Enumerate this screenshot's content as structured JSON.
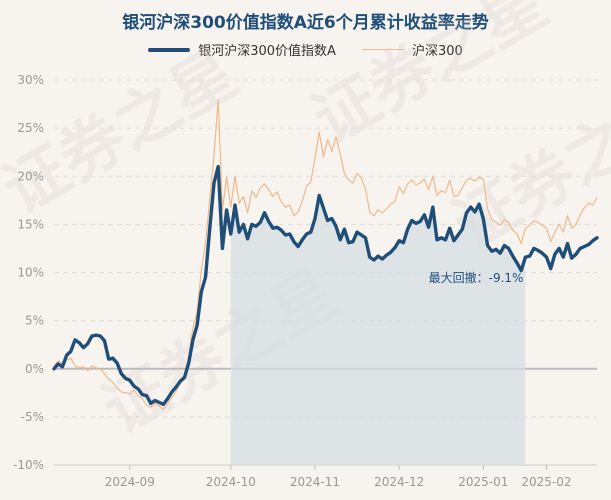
{
  "title": "银河沪深300价值指数A近6个月累计收益率走势",
  "legend": {
    "fund": "银河沪深300价值指数A",
    "index": "沪深300"
  },
  "watermark": "证券之星",
  "colors": {
    "fund": "#1f4e79",
    "index": "#f0b98a",
    "shade": "#d6dde3",
    "zero_line": "#bbbbbb",
    "grid": "#dddddd"
  },
  "chart_data": {
    "type": "line",
    "ylim": [
      -10,
      30
    ],
    "yticks": [
      -10,
      -5,
      0,
      5,
      10,
      15,
      20,
      25,
      30
    ],
    "ytick_labels": [
      "-10%",
      "-5%",
      "0%",
      "5%",
      "10%",
      "15%",
      "20%",
      "25%",
      "30%"
    ],
    "xticks": [
      {
        "label": "2024-09",
        "index": 18
      },
      {
        "label": "2024-10",
        "index": 42
      },
      {
        "label": "2024-11",
        "index": 62
      },
      {
        "label": "2024-12",
        "index": 82
      },
      {
        "label": "2025-01",
        "index": 102
      },
      {
        "label": "2025-02",
        "index": 117
      }
    ],
    "drawdown": {
      "label": "最大回撤：-9.1%",
      "start_index": 42,
      "end_index": 112
    },
    "series": [
      {
        "name": "银河沪深300价值指数A",
        "values": [
          0.0,
          0.5,
          0.2,
          1.4,
          1.8,
          3.0,
          2.7,
          2.2,
          2.6,
          3.4,
          3.5,
          3.4,
          2.9,
          1.0,
          1.1,
          0.6,
          -0.5,
          -1.0,
          -1.2,
          -1.8,
          -2.1,
          -2.7,
          -2.8,
          -3.6,
          -3.3,
          -3.5,
          -3.7,
          -3.1,
          -2.4,
          -1.9,
          -1.3,
          -0.9,
          0.6,
          3.0,
          4.5,
          8.0,
          9.5,
          14.5,
          19.3,
          21.0,
          12.5,
          16.5,
          14.0,
          17.0,
          14.2,
          15.0,
          13.5,
          15.0,
          14.8,
          15.2,
          16.2,
          15.3,
          14.6,
          14.7,
          14.4,
          13.9,
          14.0,
          13.2,
          12.7,
          13.4,
          14.0,
          14.2,
          15.6,
          18.0,
          16.7,
          15.4,
          15.6,
          14.8,
          13.4,
          14.5,
          13.1,
          13.2,
          14.2,
          13.9,
          13.6,
          11.6,
          11.3,
          11.7,
          11.4,
          11.8,
          12.1,
          12.6,
          13.3,
          13.1,
          14.5,
          15.4,
          15.1,
          15.3,
          16.0,
          14.7,
          16.8,
          13.4,
          13.6,
          13.4,
          14.6,
          13.3,
          13.9,
          14.5,
          16.2,
          16.8,
          16.3,
          17.1,
          15.6,
          12.8,
          12.2,
          12.4,
          12.0,
          12.8,
          12.5,
          11.7,
          11.0,
          10.2,
          11.6,
          11.7,
          12.5,
          12.3,
          12.0,
          11.6,
          10.4,
          11.9,
          12.5,
          11.6,
          13.0,
          11.5,
          11.9,
          12.5,
          12.7,
          12.9,
          13.3,
          13.6
        ]
      },
      {
        "name": "沪深300",
        "values": [
          0.3,
          0.8,
          0.6,
          0.9,
          1.1,
          0.3,
          0.1,
          0.2,
          -0.2,
          0.3,
          0.1,
          0.0,
          -0.5,
          -1.1,
          -1.4,
          -2.0,
          -2.4,
          -2.5,
          -2.6,
          -2.2,
          -2.8,
          -3.1,
          -3.8,
          -4.0,
          -3.6,
          -3.9,
          -4.2,
          -3.6,
          -3.0,
          -2.3,
          -1.5,
          -0.7,
          1.2,
          4.2,
          6.0,
          10.2,
          13.0,
          17.5,
          22.2,
          28.0,
          16.5,
          19.9,
          16.8,
          20.0,
          17.2,
          17.9,
          16.2,
          18.5,
          17.8,
          18.8,
          19.2,
          18.6,
          17.9,
          18.4,
          17.3,
          16.8,
          17.0,
          15.9,
          16.3,
          17.4,
          19.0,
          19.4,
          21.9,
          24.6,
          22.0,
          23.8,
          22.6,
          24.1,
          22.3,
          20.3,
          19.6,
          19.3,
          20.3,
          19.8,
          18.7,
          16.3,
          15.9,
          16.5,
          16.2,
          16.6,
          17.1,
          17.4,
          18.9,
          18.2,
          19.2,
          19.6,
          19.1,
          19.3,
          19.7,
          18.6,
          20.0,
          18.0,
          18.5,
          18.3,
          19.6,
          17.9,
          18.0,
          18.8,
          19.6,
          19.8,
          19.5,
          19.9,
          19.7,
          16.6,
          15.5,
          15.2,
          14.9,
          15.5,
          15.2,
          14.4,
          14.0,
          13.0,
          14.6,
          14.9,
          15.4,
          15.2,
          14.9,
          14.6,
          13.2,
          14.2,
          15.0,
          14.2,
          15.9,
          14.6,
          15.0,
          16.0,
          16.7,
          17.2,
          17.0,
          17.8
        ]
      }
    ]
  }
}
